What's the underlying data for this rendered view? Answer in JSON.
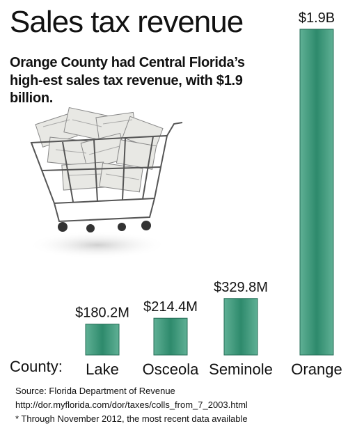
{
  "header": {
    "title": "Sales tax revenue",
    "subtitle": "Orange County had Central Florida’s high-est sales tax revenue, with $1.9 billion."
  },
  "axis_prefix": "County:",
  "colors": {
    "bar_light": "#5fb095",
    "bar_dark": "#2e8a6c",
    "bar_outline": "#236b54"
  },
  "chart_data": {
    "type": "bar",
    "title": "Sales tax revenue",
    "categories": [
      "Lake",
      "Osceola",
      "Seminole",
      "Orange"
    ],
    "values": [
      180.2,
      214.4,
      329.8,
      1900
    ],
    "value_labels": [
      "$180.2M",
      "$214.4M",
      "$329.8M",
      "$1.9B"
    ],
    "units": "millions of dollars",
    "xlabel": "County:",
    "ylabel": "",
    "grid": false,
    "axis_visible": false
  },
  "illustration": {
    "icon": "shopping-cart-with-money-icon"
  },
  "footnotes": {
    "source": "Source: Florida Department of Revenue",
    "url": "http://dor.myflorida.com/dor/taxes/colls_from_7_2003.html",
    "note": "* Through November 2012, the most recent data available"
  }
}
